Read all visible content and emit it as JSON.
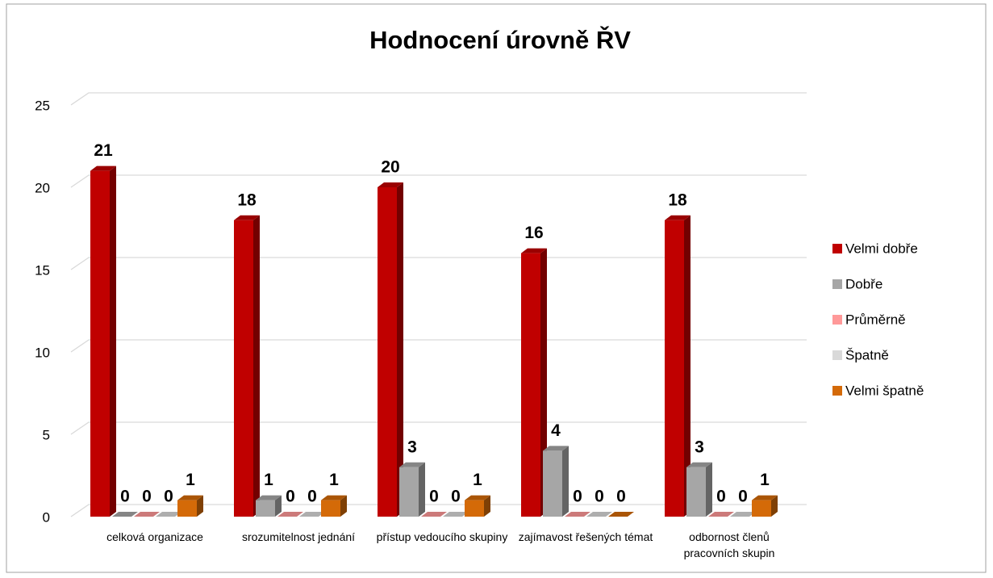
{
  "chart_data": {
    "type": "bar3d",
    "title": "Hodnocení úrovně ŘV",
    "categories": [
      "celková organizace",
      "srozumitelnost jednání",
      "přístup vedoucího skupiny",
      "zajímavost řešených témat",
      "odbornost členů pracovních skupin"
    ],
    "series": [
      {
        "name": "Velmi dobře",
        "color": "#c00000",
        "values": [
          21,
          18,
          20,
          16,
          18
        ]
      },
      {
        "name": "Dobře",
        "color": "#a6a6a6",
        "values": [
          0,
          1,
          3,
          4,
          3
        ]
      },
      {
        "name": "Průměrně",
        "color": "#ff9999",
        "values": [
          0,
          0,
          0,
          0,
          0
        ]
      },
      {
        "name": "Špatně",
        "color": "#d9d9d9",
        "values": [
          0,
          0,
          0,
          0,
          0
        ]
      },
      {
        "name": "Velmi špatně",
        "color": "#d46a08",
        "values": [
          1,
          1,
          1,
          0,
          1
        ]
      }
    ],
    "ylim": [
      0,
      25
    ],
    "yticks": [
      0,
      5,
      10,
      15,
      20,
      25
    ],
    "grid": true,
    "legend": "right"
  }
}
